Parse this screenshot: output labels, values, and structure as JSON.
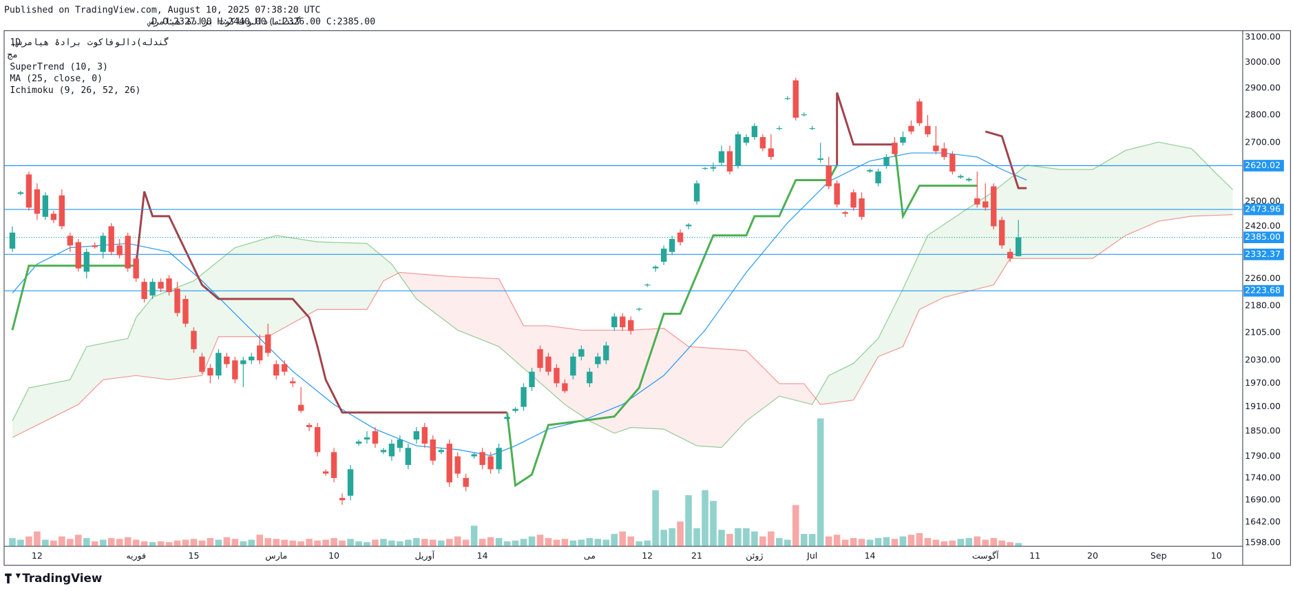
{
  "header": {
    "published": "Published on TradingView.com, August 10, 2025 07:38:20 UTC",
    "symbol": "گندله)دالوفاکوت برادۀ هیامرس",
    "ohlc": "D O:2327.00 H:2440.00 L:2326.00 C:2385.00"
  },
  "legend": {
    "interval": "1D",
    "symbol": "گندله)دالوفاکوت برادۀ هیامرس,",
    "exchange": "مج",
    "indicators": [
      "SuperTrend (10, 3)",
      "MA (25, close, 0)",
      "Ichimoku (9, 26, 52, 26)"
    ]
  },
  "footer": {
    "brand": "TradingView"
  },
  "chart_data": {
    "type": "candlestick",
    "log_scale": true,
    "grid": true,
    "up_color": "#26a69a",
    "down_color": "#ef5350",
    "xlim": [
      -1,
      149.2
    ],
    "ylim": [
      1591,
      3127
    ],
    "yticks": [
      {
        "value": 3100,
        "label": "3100.00"
      },
      {
        "value": 3000,
        "label": "3000.00"
      },
      {
        "value": 2900,
        "label": "2900.00"
      },
      {
        "value": 2800,
        "label": "2800.00"
      },
      {
        "value": 2700,
        "label": "2700.00"
      },
      {
        "value": 2500,
        "label": "2500.00"
      },
      {
        "value": 2420,
        "label": "2420.00"
      },
      {
        "value": 2260,
        "label": "2260.00"
      },
      {
        "value": 2180,
        "label": "2180.00"
      },
      {
        "value": 2105,
        "label": "2105.00"
      },
      {
        "value": 2030,
        "label": "2030.00"
      },
      {
        "value": 1970,
        "label": "1970.00"
      },
      {
        "value": 1910,
        "label": "1910.00"
      },
      {
        "value": 1850,
        "label": "1850.00"
      },
      {
        "value": 1790,
        "label": "1790.00"
      },
      {
        "value": 1740,
        "label": "1740.00"
      },
      {
        "value": 1690,
        "label": "1690.00"
      },
      {
        "value": 1642,
        "label": "1642.00"
      },
      {
        "value": 1598,
        "label": "1598.00"
      }
    ],
    "xticks": [
      {
        "value": 3,
        "label": "12"
      },
      {
        "value": 15,
        "label": "فوریه"
      },
      {
        "value": 22,
        "label": "15"
      },
      {
        "value": 32,
        "label": "مارس"
      },
      {
        "value": 39,
        "label": "10"
      },
      {
        "value": 50,
        "label": "آوریل"
      },
      {
        "value": 57,
        "label": "14"
      },
      {
        "value": 70,
        "label": "می"
      },
      {
        "value": 77,
        "label": "12"
      },
      {
        "value": 83,
        "label": "21"
      },
      {
        "value": 90,
        "label": "ژوئن"
      },
      {
        "value": 97,
        "label": "Jul"
      },
      {
        "value": 104,
        "label": "14"
      },
      {
        "value": 118,
        "label": "آگوست"
      },
      {
        "value": 124,
        "label": "11"
      },
      {
        "value": 131,
        "label": "20"
      },
      {
        "value": 139,
        "label": "Sep"
      },
      {
        "value": 146,
        "label": "10"
      }
    ],
    "price_lines": [
      2620.02,
      2473.96,
      2332.37,
      2223.68
    ],
    "price_line_color": "#2196f3",
    "last_price": {
      "value": 2385,
      "label": "2385.00"
    },
    "candles": [
      [
        2350,
        2420,
        2340,
        2400
      ],
      [
        2525,
        2535,
        2520,
        2530
      ],
      [
        2590,
        2600,
        2470,
        2480
      ],
      [
        2540,
        2560,
        2440,
        2460
      ],
      [
        2450,
        2530,
        2440,
        2520
      ],
      [
        2460,
        2470,
        2430,
        2440
      ],
      [
        2520,
        2540,
        2410,
        2420
      ],
      [
        2390,
        2400,
        2340,
        2360
      ],
      [
        2370,
        2380,
        2280,
        2290
      ],
      [
        2280,
        2350,
        2260,
        2340
      ],
      [
        2360,
        2370,
        2350,
        2355
      ],
      [
        2340,
        2400,
        2320,
        2390
      ],
      [
        2420,
        2430,
        2330,
        2340
      ],
      [
        2360,
        2380,
        2320,
        2330
      ],
      [
        2390,
        2400,
        2280,
        2290
      ],
      [
        2320,
        2330,
        2250,
        2260
      ],
      [
        2250,
        2260,
        2190,
        2200
      ],
      [
        2210,
        2260,
        2200,
        2250
      ],
      [
        2250,
        2260,
        2220,
        2230
      ],
      [
        2260,
        2270,
        2210,
        2220
      ],
      [
        2230,
        2250,
        2150,
        2160
      ],
      [
        2200,
        2210,
        2120,
        2130
      ],
      [
        2110,
        2120,
        2050,
        2060
      ],
      [
        2040,
        2050,
        1995,
        2000
      ],
      [
        2010,
        2020,
        1970,
        1990
      ],
      [
        1990,
        2060,
        1980,
        2050
      ],
      [
        2040,
        2050,
        2010,
        2020
      ],
      [
        2030,
        2040,
        1970,
        1980
      ],
      [
        2020,
        2040,
        1960,
        2030
      ],
      [
        2030,
        2050,
        2020,
        2040
      ],
      [
        2070,
        2100,
        2020,
        2030
      ],
      [
        2100,
        2130,
        2040,
        2050
      ],
      [
        2020,
        2030,
        1980,
        1990
      ],
      [
        2020,
        2030,
        1990,
        2000
      ],
      [
        1975,
        1985,
        1960,
        1970
      ],
      [
        1915,
        1960,
        1895,
        1900
      ],
      [
        1865,
        1870,
        1850,
        1860
      ],
      [
        1860,
        1870,
        1790,
        1800
      ],
      [
        1755,
        1760,
        1745,
        1750
      ],
      [
        1800,
        1810,
        1730,
        1740
      ],
      [
        1695,
        1705,
        1680,
        1690
      ],
      [
        1700,
        1770,
        1690,
        1760
      ],
      [
        1820,
        1830,
        1815,
        1825
      ],
      [
        1830,
        1850,
        1820,
        1835
      ],
      [
        1850,
        1860,
        1810,
        1820
      ],
      [
        1800,
        1810,
        1795,
        1805
      ],
      [
        1790,
        1830,
        1780,
        1820
      ],
      [
        1810,
        1840,
        1800,
        1830
      ],
      [
        1770,
        1820,
        1760,
        1810
      ],
      [
        1830,
        1860,
        1820,
        1850
      ],
      [
        1860,
        1870,
        1810,
        1820
      ],
      [
        1830,
        1840,
        1770,
        1780
      ],
      [
        1800,
        1810,
        1795,
        1805
      ],
      [
        1820,
        1830,
        1720,
        1730
      ],
      [
        1790,
        1800,
        1740,
        1750
      ],
      [
        1740,
        1750,
        1710,
        1720
      ],
      [
        1790,
        1800,
        1785,
        1795
      ],
      [
        1800,
        1810,
        1760,
        1770
      ],
      [
        1790,
        1800,
        1750,
        1760
      ],
      [
        1760,
        1820,
        1750,
        1810
      ],
      [
        1880,
        1890,
        1875,
        1885
      ],
      [
        1900,
        1910,
        1895,
        1905
      ],
      [
        1910,
        1970,
        1900,
        1960
      ],
      [
        1960,
        2010,
        1950,
        2000
      ],
      [
        2060,
        2070,
        2000,
        2010
      ],
      [
        2040,
        2050,
        1990,
        2000
      ],
      [
        2010,
        2020,
        1960,
        1970
      ],
      [
        1970,
        1980,
        1945,
        1950
      ],
      [
        1990,
        2050,
        1980,
        2040
      ],
      [
        2040,
        2070,
        2030,
        2060
      ],
      [
        1970,
        2010,
        1960,
        2000
      ],
      [
        2020,
        2050,
        2010,
        2040
      ],
      [
        2030,
        2080,
        2020,
        2070
      ],
      [
        2120,
        2160,
        2110,
        2150
      ],
      [
        2150,
        2160,
        2110,
        2120
      ],
      [
        2140,
        2150,
        2100,
        2110
      ],
      [
        2170,
        2175,
        2165,
        2172
      ],
      [
        2240,
        2245,
        2235,
        2242
      ],
      [
        2290,
        2300,
        2280,
        2295
      ],
      [
        2310,
        2360,
        2300,
        2350
      ],
      [
        2340,
        2390,
        2330,
        2380
      ],
      [
        2400,
        2410,
        2360,
        2370
      ],
      [
        2420,
        2430,
        2410,
        2425
      ],
      [
        2500,
        2570,
        2490,
        2560
      ],
      [
        2610,
        2615,
        2605,
        2612
      ],
      [
        2610,
        2630,
        2600,
        2615
      ],
      [
        2630,
        2690,
        2620,
        2670
      ],
      [
        2670,
        2690,
        2590,
        2600
      ],
      [
        2620,
        2740,
        2610,
        2730
      ],
      [
        2700,
        2730,
        2690,
        2720
      ],
      [
        2720,
        2770,
        2710,
        2760
      ],
      [
        2720,
        2730,
        2670,
        2680
      ],
      [
        2680,
        2730,
        2640,
        2650
      ],
      [
        2750,
        2760,
        2745,
        2752
      ],
      [
        2860,
        2870,
        2855,
        2862
      ],
      [
        2930,
        2940,
        2780,
        2790
      ],
      [
        2800,
        2810,
        2795,
        2802
      ],
      [
        2750,
        2760,
        2745,
        2752
      ],
      [
        2640,
        2700,
        2630,
        2645
      ],
      [
        2620,
        2650,
        2540,
        2550
      ],
      [
        2560,
        2570,
        2480,
        2490
      ],
      [
        2465,
        2470,
        2450,
        2460
      ],
      [
        2530,
        2540,
        2470,
        2480
      ],
      [
        2510,
        2530,
        2440,
        2450
      ],
      [
        2600,
        2610,
        2595,
        2605
      ],
      [
        2560,
        2610,
        2550,
        2600
      ],
      [
        2620,
        2660,
        2610,
        2650
      ],
      [
        2700,
        2720,
        2650,
        2660
      ],
      [
        2700,
        2740,
        2690,
        2720
      ],
      [
        2760,
        2780,
        2730,
        2740
      ],
      [
        2850,
        2860,
        2760,
        2770
      ],
      [
        2760,
        2800,
        2720,
        2730
      ],
      [
        2690,
        2760,
        2660,
        2670
      ],
      [
        2680,
        2700,
        2640,
        2650
      ],
      [
        2660,
        2670,
        2590,
        2600
      ],
      [
        2580,
        2590,
        2575,
        2585
      ],
      [
        2570,
        2580,
        2565,
        2575
      ],
      [
        2510,
        2600,
        2480,
        2490
      ],
      [
        2500,
        2560,
        2470,
        2480
      ],
      [
        2550,
        2560,
        2410,
        2420
      ],
      [
        2440,
        2450,
        2350,
        2360
      ],
      [
        2340,
        2350,
        2310,
        2320
      ],
      [
        2327,
        2440,
        2326,
        2385
      ]
    ],
    "volume": [
      10,
      8,
      12,
      18,
      8,
      7,
      12,
      9,
      14,
      10,
      6,
      8,
      10,
      9,
      11,
      8,
      6,
      5,
      6,
      5,
      7,
      8,
      9,
      7,
      10,
      8,
      11,
      9,
      6,
      8,
      14,
      10,
      9,
      8,
      7,
      6,
      9,
      7,
      8,
      10,
      7,
      9,
      6,
      5,
      8,
      9,
      7,
      6,
      8,
      10,
      9,
      8,
      7,
      9,
      12,
      8,
      25,
      9,
      11,
      10,
      6,
      7,
      9,
      12,
      14,
      10,
      8,
      9,
      7,
      8,
      10,
      9,
      8,
      15,
      18,
      12,
      6,
      7,
      68,
      20,
      22,
      30,
      62,
      22,
      68,
      55,
      20,
      15,
      22,
      22,
      18,
      12,
      18,
      10,
      8,
      50,
      15,
      15,
      155,
      12,
      14,
      8,
      10,
      9,
      8,
      10,
      11,
      9,
      12,
      14,
      16,
      10,
      8,
      6,
      7,
      9,
      10,
      12,
      8,
      10,
      7,
      5,
      4
    ],
    "supertrend": [
      {
        "color": "#4caf50",
        "x": [
          0,
          2,
          15
        ],
        "values": [
          2112,
          2298,
          2298
        ]
      },
      {
        "color": "#a0434b",
        "x": [
          15,
          16,
          17,
          19,
          23,
          25,
          34,
          36,
          37,
          38,
          40,
          60
        ],
        "values": [
          2298,
          2533,
          2452,
          2452,
          2241,
          2200,
          2200,
          2147,
          2067,
          1979,
          1896,
          1896
        ]
      },
      {
        "color": "#4caf50",
        "x": [
          60,
          61,
          63,
          65,
          69,
          73,
          76,
          79,
          81,
          85,
          89,
          90,
          93,
          95,
          99,
          100
        ],
        "values": [
          1896,
          1723,
          1748,
          1865,
          1875,
          1886,
          1958,
          2158,
          2158,
          2391,
          2391,
          2452,
          2452,
          2571,
          2571,
          2622
        ]
      },
      {
        "color": "#a0434b",
        "x": [
          100,
          100,
          102,
          107
        ],
        "values": [
          2622,
          2883,
          2694,
          2694
        ]
      },
      {
        "color": "#4caf50",
        "x": [
          107,
          108,
          110,
          117
        ],
        "values": [
          2694,
          2452,
          2552,
          2552
        ]
      },
      {
        "color": "#a0434b",
        "x": [
          118,
          120,
          122,
          123
        ],
        "values": [
          2740,
          2723,
          2544,
          2544
        ]
      }
    ],
    "ma": {
      "color": "#2196f3",
      "x": [
        0,
        3,
        7,
        14,
        19,
        23,
        29,
        34,
        39,
        44,
        49,
        54,
        58,
        61,
        65,
        69,
        74,
        79,
        84,
        89,
        94,
        99,
        104,
        109,
        113,
        117,
        120,
        123
      ],
      "values": [
        2217,
        2303,
        2353,
        2366,
        2340,
        2253,
        2112,
        2001,
        1916,
        1855,
        1815,
        1806,
        1792,
        1815,
        1855,
        1875,
        1916,
        1990,
        2112,
        2278,
        2431,
        2566,
        2636,
        2664,
        2664,
        2650,
        2607,
        2571
      ]
    },
    "ichimoku": {
      "span_a": {
        "color": "#4caf50",
        "x": [
          0,
          2,
          7,
          9,
          14,
          15,
          17,
          22,
          27,
          32,
          37,
          43,
          46,
          49,
          54,
          59,
          63,
          67,
          70,
          73,
          75,
          79,
          83,
          86,
          89,
          93,
          97,
          99,
          102,
          105,
          108,
          111,
          115,
          119,
          123,
          127,
          131,
          135,
          139,
          143,
          146,
          148
        ],
        "values": [
          1875,
          1958,
          1979,
          2067,
          2089,
          2147,
          2205,
          2253,
          2353,
          2391,
          2371,
          2366,
          2303,
          2200,
          2112,
          2067,
          1990,
          1916,
          1875,
          1845,
          1859,
          1855,
          1815,
          1811,
          1875,
          1937,
          1916,
          1990,
          2022,
          2089,
          2229,
          2391,
          2462,
          2533,
          2622,
          2607,
          2607,
          2673,
          2702,
          2679,
          2593,
          2539
        ]
      },
      "span_b": {
        "color": "#ef5350",
        "x": [
          0,
          4,
          8,
          11,
          15,
          19,
          23,
          25,
          31,
          37,
          43,
          45,
          47,
          53,
          59,
          62,
          65,
          69,
          75,
          79,
          82,
          89,
          93,
          96,
          98,
          102,
          105,
          108,
          110,
          113,
          117,
          119,
          121,
          131,
          135,
          139,
          143,
          148
        ],
        "values": [
          1835,
          1875,
          1916,
          1979,
          1990,
          1979,
          1990,
          2094,
          2094,
          2170,
          2170,
          2253,
          2278,
          2266,
          2259,
          2124,
          2124,
          2112,
          2112,
          2117,
          2067,
          2056,
          1969,
          1969,
          1916,
          1927,
          2040,
          2067,
          2170,
          2205,
          2229,
          2241,
          2320,
          2320,
          2391,
          2436,
          2452,
          2457
        ]
      },
      "bull_fill": "rgba(76,175,80,0.1)",
      "bear_fill": "rgba(239,83,80,0.1)"
    }
  }
}
